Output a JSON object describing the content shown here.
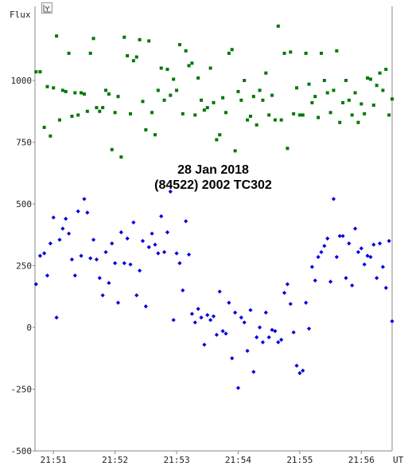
{
  "chart_data": {
    "type": "scatter",
    "title": "28 Jan 2018",
    "subtitle": "(84522) 2002 TC302",
    "ylabel": "Flux",
    "xlabel": "UT",
    "ylim": [
      -500,
      1300
    ],
    "yticks": [
      -500,
      -250,
      0,
      250,
      500,
      750,
      1000
    ],
    "ytick_labels": [
      "-500",
      "-250",
      "0",
      "250",
      "500",
      "750",
      "1000"
    ],
    "xlim": [
      "21:50:42",
      "21:56:30"
    ],
    "xticks": [
      "21:51",
      "21:52",
      "21:53",
      "21:54",
      "21:55",
      "21:56"
    ],
    "grid": false,
    "series": [
      {
        "color": "#007700",
        "marker": "square",
        "points": [
          [
            "21:50:43",
            1035
          ],
          [
            "21:50:47",
            1035
          ],
          [
            "21:50:51",
            810
          ],
          [
            "21:50:54",
            975
          ],
          [
            "21:50:57",
            775
          ],
          [
            "21:51:00",
            970
          ],
          [
            "21:51:03",
            1180
          ],
          [
            "21:51:06",
            840
          ],
          [
            "21:51:09",
            960
          ],
          [
            "21:51:12",
            955
          ],
          [
            "21:51:15",
            1110
          ],
          [
            "21:51:18",
            855
          ],
          [
            "21:51:21",
            950
          ],
          [
            "21:51:24",
            860
          ],
          [
            "21:51:27",
            950
          ],
          [
            "21:51:30",
            945
          ],
          [
            "21:51:33",
            875
          ],
          [
            "21:51:36",
            1110
          ],
          [
            "21:51:39",
            1170
          ],
          [
            "21:51:42",
            890
          ],
          [
            "21:51:45",
            875
          ],
          [
            "21:51:48",
            890
          ],
          [
            "21:51:51",
            960
          ],
          [
            "21:51:54",
            945
          ],
          [
            "21:51:57",
            720
          ],
          [
            "21:52:00",
            870
          ],
          [
            "21:52:03",
            935
          ],
          [
            "21:52:06",
            690
          ],
          [
            "21:52:09",
            1175
          ],
          [
            "21:52:12",
            1100
          ],
          [
            "21:52:15",
            865
          ],
          [
            "21:52:18",
            1080
          ],
          [
            "21:52:21",
            1095
          ],
          [
            "21:52:24",
            1165
          ],
          [
            "21:52:27",
            915
          ],
          [
            "21:52:30",
            800
          ],
          [
            "21:52:33",
            1160
          ],
          [
            "21:52:36",
            870
          ],
          [
            "21:52:39",
            780
          ],
          [
            "21:52:42",
            960
          ],
          [
            "21:52:45",
            1050
          ],
          [
            "21:52:48",
            920
          ],
          [
            "21:52:51",
            1045
          ],
          [
            "21:52:54",
            940
          ],
          [
            "21:52:57",
            1005
          ],
          [
            "21:53:00",
            960
          ],
          [
            "21:53:03",
            1145
          ],
          [
            "21:53:06",
            865
          ],
          [
            "21:53:09",
            1120
          ],
          [
            "21:53:12",
            1060
          ],
          [
            "21:53:15",
            1070
          ],
          [
            "21:53:18",
            860
          ],
          [
            "21:53:21",
            1010
          ],
          [
            "21:53:24",
            920
          ],
          [
            "21:53:27",
            880
          ],
          [
            "21:53:30",
            890
          ],
          [
            "21:53:33",
            1050
          ],
          [
            "21:53:36",
            910
          ],
          [
            "21:53:39",
            760
          ],
          [
            "21:53:42",
            780
          ],
          [
            "21:53:45",
            930
          ],
          [
            "21:53:48",
            870
          ],
          [
            "21:53:51",
            1110
          ],
          [
            "21:53:54",
            1125
          ],
          [
            "21:53:57",
            715
          ],
          [
            "21:54:00",
            955
          ],
          [
            "21:54:03",
            920
          ],
          [
            "21:54:06",
            1000
          ],
          [
            "21:54:09",
            840
          ],
          [
            "21:54:12",
            855
          ],
          [
            "21:54:15",
            935
          ],
          [
            "21:54:18",
            820
          ],
          [
            "21:54:21",
            960
          ],
          [
            "21:54:24",
            920
          ],
          [
            "21:54:27",
            1030
          ],
          [
            "21:54:30",
            860
          ],
          [
            "21:54:33",
            940
          ],
          [
            "21:54:36",
            840
          ],
          [
            "21:54:39",
            1220
          ],
          [
            "21:54:42",
            840
          ],
          [
            "21:54:45",
            1110
          ],
          [
            "21:54:48",
            725
          ],
          [
            "21:54:51",
            1115
          ],
          [
            "21:54:54",
            865
          ],
          [
            "21:54:57",
            970
          ],
          [
            "21:55:00",
            860
          ],
          [
            "21:55:03",
            860
          ],
          [
            "21:55:06",
            1110
          ],
          [
            "21:55:09",
            985
          ],
          [
            "21:55:12",
            910
          ],
          [
            "21:55:15",
            935
          ],
          [
            "21:55:18",
            850
          ],
          [
            "21:55:21",
            1110
          ],
          [
            "21:55:24",
            1000
          ],
          [
            "21:55:27",
            950
          ],
          [
            "21:55:30",
            870
          ],
          [
            "21:55:33",
            960
          ],
          [
            "21:55:36",
            1120
          ],
          [
            "21:55:39",
            830
          ],
          [
            "21:55:42",
            910
          ],
          [
            "21:55:45",
            1000
          ],
          [
            "21:55:48",
            920
          ],
          [
            "21:55:51",
            860
          ],
          [
            "21:55:54",
            950
          ],
          [
            "21:55:57",
            830
          ],
          [
            "21:56:00",
            905
          ],
          [
            "21:56:03",
            865
          ],
          [
            "21:56:06",
            1010
          ],
          [
            "21:56:09",
            1005
          ],
          [
            "21:56:12",
            900
          ],
          [
            "21:56:15",
            980
          ],
          [
            "21:56:18",
            1030
          ],
          [
            "21:56:21",
            960
          ],
          [
            "21:56:24",
            1045
          ],
          [
            "21:56:27",
            860
          ],
          [
            "21:56:30",
            925
          ]
        ]
      },
      {
        "color": "#0000dd",
        "marker": "diamond",
        "points": [
          [
            "21:50:43",
            175
          ],
          [
            "21:50:47",
            290
          ],
          [
            "21:50:51",
            300
          ],
          [
            "21:50:54",
            210
          ],
          [
            "21:50:57",
            340
          ],
          [
            "21:51:00",
            445
          ],
          [
            "21:51:03",
            40
          ],
          [
            "21:51:06",
            355
          ],
          [
            "21:51:09",
            400
          ],
          [
            "21:51:12",
            440
          ],
          [
            "21:51:15",
            380
          ],
          [
            "21:51:18",
            275
          ],
          [
            "21:51:21",
            210
          ],
          [
            "21:51:24",
            470
          ],
          [
            "21:51:27",
            290
          ],
          [
            "21:51:30",
            520
          ],
          [
            "21:51:33",
            465
          ],
          [
            "21:51:36",
            280
          ],
          [
            "21:51:39",
            355
          ],
          [
            "21:51:42",
            275
          ],
          [
            "21:51:45",
            200
          ],
          [
            "21:51:48",
            130
          ],
          [
            "21:51:51",
            305
          ],
          [
            "21:51:54",
            180
          ],
          [
            "21:51:57",
            340
          ],
          [
            "21:52:00",
            260
          ],
          [
            "21:52:03",
            100
          ],
          [
            "21:52:06",
            385
          ],
          [
            "21:52:09",
            260
          ],
          [
            "21:52:12",
            360
          ],
          [
            "21:52:15",
            255
          ],
          [
            "21:52:18",
            425
          ],
          [
            "21:52:21",
            130
          ],
          [
            "21:52:24",
            230
          ],
          [
            "21:52:27",
            350
          ],
          [
            "21:52:30",
            85
          ],
          [
            "21:52:33",
            325
          ],
          [
            "21:52:36",
            380
          ],
          [
            "21:52:39",
            335
          ],
          [
            "21:52:42",
            300
          ],
          [
            "21:52:45",
            450
          ],
          [
            "21:52:48",
            305
          ],
          [
            "21:52:51",
            385
          ],
          [
            "21:52:54",
            550
          ],
          [
            "21:52:57",
            30
          ],
          [
            "21:53:00",
            300
          ],
          [
            "21:53:03",
            260
          ],
          [
            "21:53:06",
            150
          ],
          [
            "21:53:09",
            430
          ],
          [
            "21:53:12",
            295
          ],
          [
            "21:53:15",
            55
          ],
          [
            "21:53:18",
            20
          ],
          [
            "21:53:21",
            75
          ],
          [
            "21:53:24",
            40
          ],
          [
            "21:53:27",
            -70
          ],
          [
            "21:53:30",
            50
          ],
          [
            "21:53:33",
            30
          ],
          [
            "21:53:36",
            45
          ],
          [
            "21:53:39",
            -30
          ],
          [
            "21:53:42",
            145
          ],
          [
            "21:53:45",
            -15
          ],
          [
            "21:53:48",
            -25
          ],
          [
            "21:53:51",
            100
          ],
          [
            "21:53:54",
            -125
          ],
          [
            "21:53:57",
            60
          ],
          [
            "21:54:00",
            -245
          ],
          [
            "21:54:03",
            40
          ],
          [
            "21:54:06",
            20
          ],
          [
            "21:54:09",
            -95
          ],
          [
            "21:54:12",
            70
          ],
          [
            "21:54:15",
            -180
          ],
          [
            "21:54:18",
            -40
          ],
          [
            "21:54:21",
            0
          ],
          [
            "21:54:24",
            -60
          ],
          [
            "21:54:27",
            60
          ],
          [
            "21:54:30",
            -40
          ],
          [
            "21:54:33",
            -10
          ],
          [
            "21:54:36",
            -15
          ],
          [
            "21:54:39",
            -60
          ],
          [
            "21:54:42",
            -50
          ],
          [
            "21:54:45",
            140
          ],
          [
            "21:54:48",
            175
          ],
          [
            "21:54:51",
            95
          ],
          [
            "21:54:54",
            -20
          ],
          [
            "21:54:57",
            -155
          ],
          [
            "21:55:00",
            -185
          ],
          [
            "21:55:03",
            -175
          ],
          [
            "21:55:06",
            100
          ],
          [
            "21:55:09",
            -5
          ],
          [
            "21:55:12",
            245
          ],
          [
            "21:55:15",
            190
          ],
          [
            "21:55:18",
            285
          ],
          [
            "21:55:21",
            305
          ],
          [
            "21:55:24",
            330
          ],
          [
            "21:55:27",
            360
          ],
          [
            "21:55:30",
            185
          ],
          [
            "21:55:33",
            520
          ],
          [
            "21:55:36",
            285
          ],
          [
            "21:55:39",
            370
          ],
          [
            "21:55:42",
            370
          ],
          [
            "21:55:45",
            200
          ],
          [
            "21:55:48",
            340
          ],
          [
            "21:55:51",
            170
          ],
          [
            "21:55:54",
            400
          ],
          [
            "21:55:57",
            305
          ],
          [
            "21:56:00",
            320
          ],
          [
            "21:56:03",
            255
          ],
          [
            "21:56:06",
            290
          ],
          [
            "21:56:09",
            285
          ],
          [
            "21:56:12",
            335
          ],
          [
            "21:56:15",
            200
          ],
          [
            "21:56:18",
            340
          ],
          [
            "21:56:21",
            245
          ],
          [
            "21:56:24",
            160
          ],
          [
            "21:56:27",
            350
          ],
          [
            "21:56:30",
            25
          ]
        ]
      }
    ]
  },
  "colors": {
    "background": "#ffffff",
    "axis": "#888888",
    "text": "#222222"
  },
  "toolbar": {
    "icon": "chart-tool-icon"
  }
}
